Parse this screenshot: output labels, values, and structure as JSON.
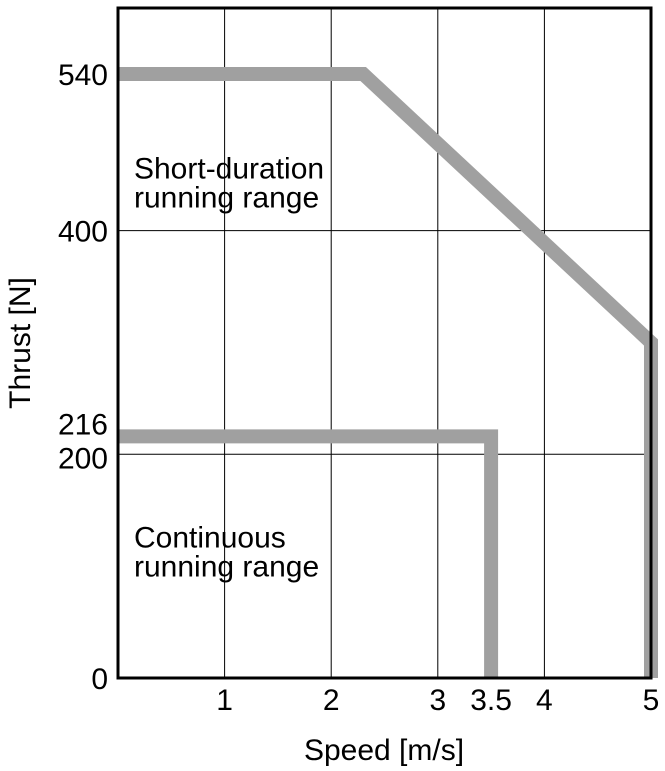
{
  "chart_data": {
    "type": "line",
    "xlabel": "Speed [m/s]",
    "ylabel": "Thrust [N]",
    "xlim": [
      0,
      5
    ],
    "ylim": [
      0,
      540
    ],
    "x_ticks": [
      1,
      2,
      3,
      3.5,
      4,
      5
    ],
    "x_tick_labels": [
      "1",
      "2",
      "3",
      "3.5",
      "4",
      "5"
    ],
    "y_ticks": [
      0,
      200,
      216,
      400,
      540
    ],
    "y_tick_labels": [
      "0",
      "200",
      "216",
      "400",
      "540"
    ],
    "x_grid": [
      1,
      2,
      3,
      4,
      5
    ],
    "y_grid": [
      200,
      400
    ],
    "grid": true,
    "line_color": "#a0a0a0",
    "series": [
      {
        "x": [
          0,
          2.3,
          5,
          5
        ],
        "y": [
          540,
          540,
          300,
          0
        ]
      },
      {
        "x": [
          0,
          3.5,
          3.5
        ],
        "y": [
          216,
          216,
          0
        ]
      }
    ],
    "annotations": [
      {
        "lines": [
          "Short-duration",
          "running range"
        ],
        "x": 0.15,
        "y": 460
      },
      {
        "lines": [
          "Continuous",
          "running range"
        ],
        "x": 0.15,
        "y": 130
      }
    ]
  }
}
